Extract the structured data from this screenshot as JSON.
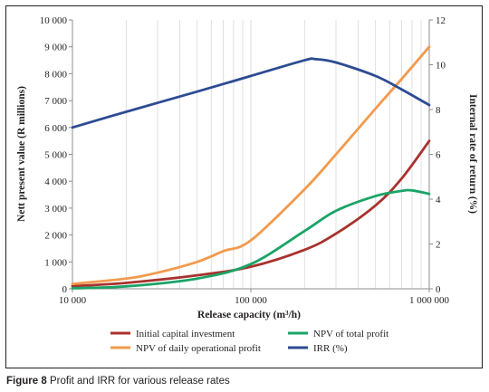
{
  "caption": {
    "label": "Figure 8",
    "text": "Profit and IRR for various release rates"
  },
  "chart_data": {
    "type": "line",
    "xlabel": "Release capacity (m³/h)",
    "ylabel_left": "Nett present value (R millions)",
    "ylabel_right": "Internal rate of return (%)",
    "x_scale": "log",
    "xlim": [
      10000,
      1000000
    ],
    "xticks": [
      10000,
      100000,
      1000000
    ],
    "xtick_labels": [
      "10 000",
      "100 000",
      "1 000 000"
    ],
    "ylim_left": [
      0,
      10000
    ],
    "yticks_left": [
      0,
      1000,
      2000,
      3000,
      4000,
      5000,
      6000,
      7000,
      8000,
      9000,
      10000
    ],
    "ytick_labels_left": [
      "0",
      "1 000",
      "2 000",
      "3 000",
      "4 000",
      "5 000",
      "6 000",
      "7 000",
      "8 000",
      "9 000",
      "10 000"
    ],
    "ylim_right": [
      0,
      12
    ],
    "yticks_right": [
      0,
      2,
      4,
      6,
      8,
      10,
      12
    ],
    "ytick_labels_right": [
      "0",
      "2",
      "4",
      "6",
      "8",
      "10",
      "12"
    ],
    "grid": "vertical",
    "legend_position": "bottom",
    "series": [
      {
        "name": "Initial capital investment",
        "color": "#a8322d",
        "axis": "left",
        "x": [
          10000,
          20000,
          50000,
          100000,
          200000,
          300000,
          500000,
          700000,
          1000000
        ],
        "y": [
          100,
          220,
          500,
          820,
          1450,
          2050,
          3100,
          4100,
          5500
        ]
      },
      {
        "name": "NPV of total profit",
        "color": "#1ba468",
        "axis": "left",
        "x": [
          10000,
          20000,
          50000,
          100000,
          200000,
          300000,
          500000,
          700000,
          800000,
          1000000
        ],
        "y": [
          20,
          90,
          380,
          920,
          2150,
          2900,
          3450,
          3640,
          3660,
          3530
        ]
      },
      {
        "name": "NPV of daily operational profit",
        "color": "#f29a4d",
        "axis": "left",
        "x": [
          10000,
          20000,
          30000,
          50000,
          70000,
          100000,
          200000,
          300000,
          500000,
          700000,
          1000000
        ],
        "y": [
          180,
          380,
          600,
          1000,
          1400,
          1800,
          3700,
          5000,
          6700,
          7800,
          9000
        ]
      },
      {
        "name": "IRR (%)",
        "color": "#2d4b93",
        "axis": "right",
        "x": [
          10000,
          20000,
          50000,
          100000,
          200000,
          230000,
          300000,
          500000,
          700000,
          1000000
        ],
        "y": [
          7.2,
          7.9,
          8.8,
          9.5,
          10.2,
          10.25,
          10.1,
          9.5,
          8.9,
          8.2
        ]
      }
    ]
  }
}
